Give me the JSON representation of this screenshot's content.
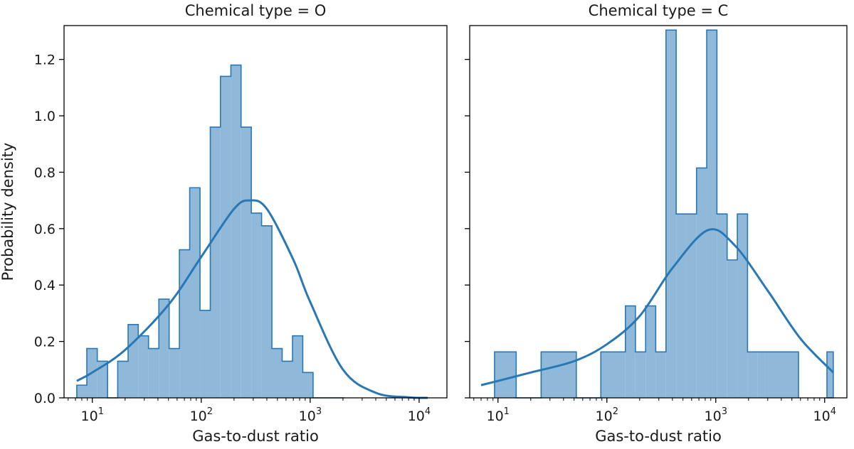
{
  "chart_data": {
    "type": "histogram",
    "shared_ylabel": "Probability density",
    "colors": {
      "fill": "#8fb8d9",
      "edge": "#2878b5",
      "kde": "#2878b5"
    },
    "panels": [
      {
        "title": "Chemical type = O",
        "xlabel": "Gas-to-dust ratio",
        "xscale": "log",
        "xlim": [
          5.5,
          18000
        ],
        "ylim": [
          0,
          1.32
        ],
        "xticks": [
          {
            "value": 10,
            "base": "10",
            "exp": "1"
          },
          {
            "value": 100,
            "base": "10",
            "exp": "2"
          },
          {
            "value": 1000,
            "base": "10",
            "exp": "3"
          },
          {
            "value": 10000,
            "base": "10",
            "exp": "4"
          }
        ],
        "yticks": [
          "0.0",
          "0.2",
          "0.4",
          "0.6",
          "0.8",
          "1.0",
          "1.2"
        ],
        "show_ytick_labels": true,
        "bins": {
          "edges": [
            7.2,
            8.9,
            11.1,
            13.8,
            17.1,
            21.3,
            26.4,
            32.8,
            40.8,
            50.7,
            63.0,
            78.3,
            97.4,
            121,
            150,
            187,
            232,
            288,
            358,
            445,
            553,
            688,
            855,
            1063,
            1321,
            1642,
            2041
          ],
          "heights": [
            0.045,
            0.175,
            0.13,
            0.0,
            0.13,
            0.26,
            0.22,
            0.175,
            0.35,
            0.175,
            0.525,
            0.745,
            0.31,
            0.96,
            1.14,
            1.18,
            0.96,
            0.655,
            0.61,
            0.175,
            0.13,
            0.22,
            0.09,
            0.0,
            0.0,
            0.0
          ]
        },
        "kde": {
          "x": [
            7.2,
            10,
            20,
            50,
            100,
            200,
            280,
            400,
            700,
            1000,
            2000,
            4000,
            8000,
            12000
          ],
          "y": [
            0.06,
            0.09,
            0.17,
            0.33,
            0.5,
            0.67,
            0.7,
            0.67,
            0.49,
            0.34,
            0.1,
            0.018,
            0.002,
            0.0
          ]
        }
      },
      {
        "title": "Chemical type = C",
        "xlabel": "Gas-to-dust ratio",
        "xscale": "log",
        "xlim": [
          5.5,
          16000
        ],
        "ylim": [
          0,
          1.32
        ],
        "xticks": [
          {
            "value": 10,
            "base": "10",
            "exp": "1"
          },
          {
            "value": 100,
            "base": "10",
            "exp": "2"
          },
          {
            "value": 1000,
            "base": "10",
            "exp": "3"
          },
          {
            "value": 10000,
            "base": "10",
            "exp": "4"
          }
        ],
        "yticks": [
          "0.0",
          "0.2",
          "0.4",
          "0.6",
          "0.8",
          "1.0",
          "1.2"
        ],
        "show_ytick_labels": false,
        "bins": {
          "edges": [
            9.3,
            14.7,
            24.9,
            52.4,
            88.0,
            148,
            183,
            227,
            281,
            349,
            433,
            537,
            666,
            826,
            1025,
            1272,
            1578,
            1958,
            2429,
            2811,
            5756
          ],
          "heights": [
            0.163,
            0.0,
            0.163,
            0.0,
            0.163,
            0.326,
            0.163,
            0.326,
            0.163,
            1.304,
            0.652,
            0.652,
            0.815,
            1.304,
            0.652,
            0.489,
            0.652,
            0.163,
            0.163,
            0.163
          ]
        },
        "extra_bin": {
          "x0": 10500,
          "x1": 12000,
          "height": 0.163
        },
        "kde": {
          "x": [
            7,
            10,
            20,
            50,
            100,
            200,
            400,
            850,
            1500,
            3000,
            6000,
            12000
          ],
          "y": [
            0.045,
            0.06,
            0.09,
            0.13,
            0.19,
            0.29,
            0.46,
            0.595,
            0.54,
            0.38,
            0.21,
            0.09
          ]
        }
      }
    ]
  }
}
